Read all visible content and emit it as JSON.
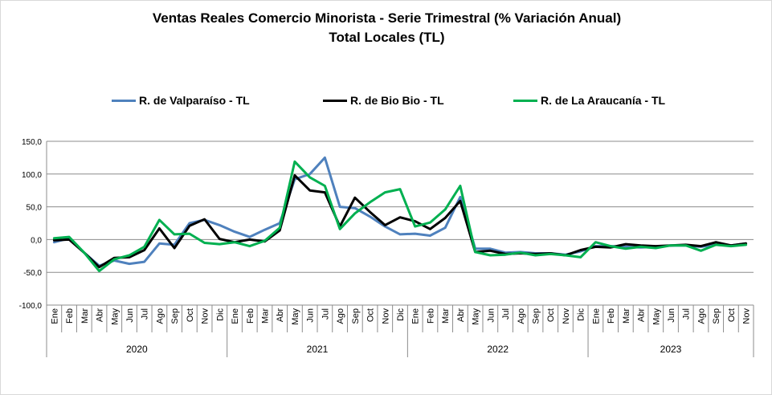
{
  "chart_data": {
    "type": "line",
    "title": "Ventas Reales Comercio Minorista - Serie Trimestral (% Variación Anual)",
    "subtitle": "Total Locales (TL)",
    "xlabel": "",
    "ylabel": "",
    "ylim": [
      -100,
      150
    ],
    "yticks": [
      "-100,0",
      "-50,0",
      "0,0",
      "50,0",
      "100,0",
      "150,0"
    ],
    "grid": "horizontal",
    "legend_position": "top",
    "x": [
      "Ene",
      "Feb",
      "Mar",
      "Abr",
      "May",
      "Jun",
      "Jul",
      "Ago",
      "Sep",
      "Oct",
      "Nov",
      "Dic",
      "Ene",
      "Feb",
      "Mar",
      "Abr",
      "May",
      "Jun",
      "Jul",
      "Ago",
      "Sep",
      "Oct",
      "Nov",
      "Dic",
      "Ene",
      "Feb",
      "Mar",
      "Abr",
      "May",
      "Jun",
      "Jul",
      "Ago",
      "Sep",
      "Oct",
      "Nov",
      "Dic",
      "Ene",
      "Feb",
      "Mar",
      "Abr",
      "May",
      "Jun",
      "Jul",
      "Ago",
      "Sep",
      "Oct",
      "Nov"
    ],
    "years": [
      {
        "label": "2020",
        "start": 0,
        "count": 12
      },
      {
        "label": "2021",
        "start": 12,
        "count": 12
      },
      {
        "label": "2022",
        "start": 24,
        "count": 12
      },
      {
        "label": "2023",
        "start": 36,
        "count": 11
      }
    ],
    "series": [
      {
        "name": "R. de Valparaíso - TL",
        "color": "#4f81bd",
        "values": [
          -4,
          2,
          -20,
          -40,
          -32,
          -37,
          -34,
          -6,
          -8,
          25,
          30,
          22,
          12,
          4,
          15,
          25,
          92,
          100,
          125,
          50,
          48,
          35,
          20,
          8,
          9,
          6,
          18,
          65,
          -14,
          -14,
          -20,
          -19,
          -21,
          -21,
          -23,
          -18,
          -10,
          -10,
          -11,
          -12,
          -11,
          -9,
          -9,
          -11,
          -8,
          -9,
          -6
        ]
      },
      {
        "name": "R. de Bio Bio - TL",
        "color": "#000000",
        "values": [
          -1,
          0,
          -20,
          -42,
          -28,
          -27,
          -16,
          17,
          -13,
          21,
          31,
          1,
          -4,
          0,
          -3,
          14,
          98,
          75,
          72,
          20,
          64,
          42,
          22,
          34,
          28,
          16,
          33,
          59,
          -19,
          -17,
          -22,
          -21,
          -22,
          -21,
          -24,
          -16,
          -11,
          -12,
          -7,
          -9,
          -10,
          -9,
          -8,
          -10,
          -4,
          -9,
          -6
        ]
      },
      {
        "name": "R. de La Araucanía - TL",
        "color": "#00b050",
        "values": [
          2,
          4,
          -20,
          -48,
          -30,
          -24,
          -11,
          30,
          8,
          9,
          -5,
          -7,
          -4,
          -10,
          -2,
          18,
          119,
          95,
          82,
          16,
          40,
          57,
          72,
          77,
          20,
          26,
          46,
          82,
          -19,
          -24,
          -23,
          -20,
          -24,
          -22,
          -24,
          -27,
          -4,
          -10,
          -14,
          -11,
          -13,
          -9,
          -9,
          -17,
          -8,
          -10,
          -8
        ]
      }
    ]
  }
}
